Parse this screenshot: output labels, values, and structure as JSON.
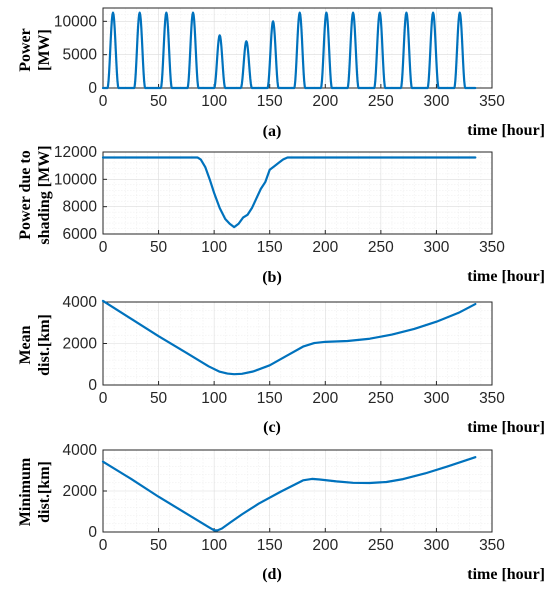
{
  "colors": {
    "line": "#0072BD",
    "axis": "#262626",
    "grid_major": "#dcdcdc",
    "grid_minor": "#ececec"
  },
  "chart_data": [
    {
      "type": "line",
      "caption": "(a)",
      "xlabel": "time [hour]",
      "ylabel_lines": [
        "Power",
        "[MW]"
      ],
      "xlim": [
        0,
        350
      ],
      "ylim": [
        0,
        12000
      ],
      "xticks": [
        0,
        50,
        100,
        150,
        200,
        250,
        300,
        350
      ],
      "yticks": [
        0,
        5000,
        10000
      ],
      "grid": true,
      "series": [
        {
          "pattern": "daily_pulses",
          "period_hours": 24,
          "pulse_start_hours": [
            0,
            24,
            48,
            72,
            96,
            120,
            144,
            168,
            192,
            216,
            240,
            264,
            288,
            312
          ],
          "peaks": [
            11300,
            11300,
            11300,
            11300,
            7900,
            7000,
            10000,
            11300,
            11300,
            11300,
            11300,
            11300,
            11300,
            11300
          ],
          "x_end": 335
        }
      ]
    },
    {
      "type": "line",
      "caption": "(b)",
      "xlabel": "time [hour]",
      "ylabel_lines": [
        "Power due to",
        "shading [MW]"
      ],
      "xlim": [
        0,
        350
      ],
      "ylim": [
        6000,
        12000
      ],
      "xticks": [
        0,
        50,
        100,
        150,
        200,
        250,
        300,
        350
      ],
      "yticks": [
        6000,
        8000,
        10000,
        12000
      ],
      "grid": true,
      "series": [
        {
          "x": [
            0,
            85,
            88,
            92,
            96,
            100,
            105,
            110,
            114,
            118,
            122,
            126,
            130,
            134,
            138,
            142,
            146,
            150,
            154,
            158,
            162,
            166,
            170,
            200,
            250,
            300,
            335
          ],
          "y": [
            11600,
            11600,
            11450,
            10900,
            10000,
            9000,
            7900,
            7100,
            6750,
            6500,
            6750,
            7200,
            7400,
            7900,
            8600,
            9300,
            9800,
            10700,
            10950,
            11200,
            11450,
            11600,
            11600,
            11600,
            11600,
            11600,
            11600
          ]
        }
      ]
    },
    {
      "type": "line",
      "caption": "(c)",
      "xlabel": "time [hour]",
      "ylabel_lines": [
        "Mean",
        "dist.[km]"
      ],
      "xlim": [
        0,
        350
      ],
      "ylim": [
        0,
        4000
      ],
      "xticks": [
        0,
        50,
        100,
        150,
        200,
        250,
        300,
        350
      ],
      "yticks": [
        0,
        2000,
        4000
      ],
      "grid": true,
      "series": [
        {
          "x": [
            0,
            25,
            50,
            75,
            95,
            105,
            112,
            118,
            125,
            135,
            150,
            165,
            180,
            190,
            200,
            220,
            240,
            260,
            280,
            300,
            320,
            335
          ],
          "y": [
            4050,
            3200,
            2350,
            1550,
            900,
            640,
            550,
            520,
            540,
            650,
            950,
            1400,
            1850,
            2020,
            2080,
            2120,
            2230,
            2430,
            2700,
            3050,
            3480,
            3900
          ]
        }
      ]
    },
    {
      "type": "line",
      "caption": "(d)",
      "xlabel": "time [hour]",
      "ylabel_lines": [
        "Minimum",
        "dist.[km]"
      ],
      "xlim": [
        0,
        350
      ],
      "ylim": [
        0,
        4000
      ],
      "xticks": [
        0,
        50,
        100,
        150,
        200,
        250,
        300,
        350
      ],
      "yticks": [
        0,
        2000,
        4000
      ],
      "grid": true,
      "series": [
        {
          "x": [
            0,
            25,
            50,
            75,
            95,
            100,
            103,
            107,
            115,
            125,
            140,
            160,
            180,
            188,
            195,
            210,
            225,
            240,
            255,
            270,
            290,
            310,
            335
          ],
          "y": [
            3430,
            2600,
            1720,
            900,
            240,
            80,
            80,
            170,
            480,
            860,
            1380,
            1970,
            2520,
            2590,
            2560,
            2470,
            2400,
            2390,
            2440,
            2580,
            2860,
            3200,
            3650
          ]
        }
      ]
    }
  ]
}
